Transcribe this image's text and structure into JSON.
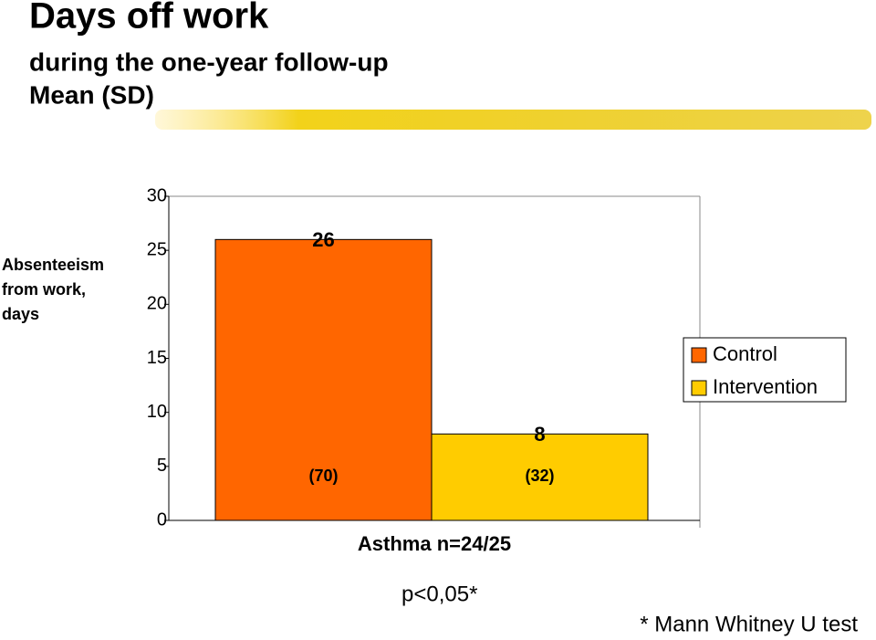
{
  "chart_data": {
    "type": "bar",
    "title": "Days off work",
    "subtitle_lines": [
      "during the one-year follow-up",
      "Mean (SD)"
    ],
    "y_label_lines": [
      "Absenteeism",
      "from work,",
      "days"
    ],
    "categories": [
      "Asthma n=24/25"
    ],
    "series": [
      {
        "name": "Control",
        "color": "#ff6600",
        "values": [
          26
        ],
        "sd_labels": [
          "(70)"
        ]
      },
      {
        "name": "Intervention",
        "color": "#ffcc00",
        "values": [
          8
        ],
        "sd_labels": [
          "(32)"
        ]
      }
    ],
    "ylim": [
      0,
      30
    ],
    "yticks": [
      0,
      5,
      10,
      15,
      20,
      25,
      30
    ],
    "grid": false,
    "legend": "right",
    "annotations": [
      "p<0,05*",
      "* Mann Whitney U test"
    ]
  }
}
